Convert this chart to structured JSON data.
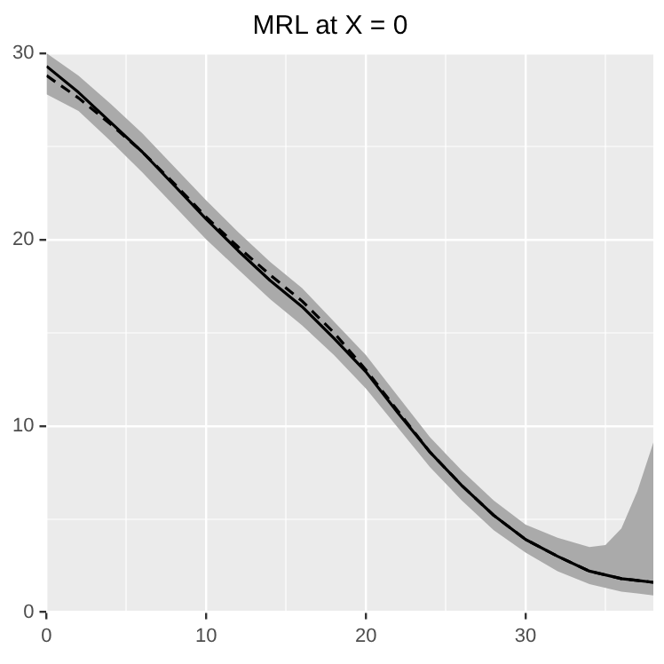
{
  "chart_data": {
    "type": "line",
    "title": "MRL at X = 0",
    "x": [
      0,
      2,
      4,
      6,
      8,
      10,
      12,
      14,
      16,
      18,
      20,
      22,
      24,
      26,
      28,
      30,
      32,
      34,
      35,
      36,
      37,
      38
    ],
    "series": [
      {
        "color": "#000000",
        "line_style": "solid",
        "values": [
          29.3,
          27.9,
          26.3,
          24.7,
          22.9,
          21.1,
          19.4,
          17.8,
          16.4,
          14.7,
          12.9,
          10.7,
          8.6,
          6.8,
          5.2,
          3.9,
          3.0,
          2.2,
          2.0,
          1.8,
          1.7,
          1.6
        ],
        "lower": [
          27.8,
          26.9,
          25.3,
          23.6,
          21.8,
          20.0,
          18.4,
          16.8,
          15.4,
          13.8,
          12.0,
          9.9,
          7.8,
          6.0,
          4.4,
          3.2,
          2.2,
          1.5,
          1.3,
          1.1,
          1.0,
          0.9
        ],
        "upper": [
          30.0,
          28.8,
          27.3,
          25.7,
          23.9,
          22.1,
          20.4,
          18.8,
          17.4,
          15.6,
          13.8,
          11.6,
          9.4,
          7.6,
          6.0,
          4.7,
          4.0,
          3.5,
          3.6,
          4.5,
          6.5,
          9.1
        ]
      },
      {
        "color": "#000000",
        "line_style": "dashed",
        "values": [
          28.8,
          27.6,
          26.2,
          24.7,
          23.0,
          21.2,
          19.6,
          18.1,
          16.7,
          15.0,
          13.0,
          10.8,
          8.6,
          6.8,
          5.2,
          3.9,
          3.0,
          2.2,
          2.0,
          1.8,
          1.7,
          1.6
        ]
      }
    ],
    "xlim": [
      0,
      38
    ],
    "xticks": [
      0,
      {
        "value": 5,
        "label": null
      },
      10,
      {
        "value": 15,
        "label": null
      },
      20,
      {
        "value": 25,
        "label": null
      },
      30,
      {
        "value": 35,
        "label": null
      }
    ],
    "ylim": [
      0,
      30
    ],
    "yticks": [
      0,
      {
        "value": 5,
        "label": null
      },
      10,
      {
        "value": 15,
        "label": null
      },
      20,
      {
        "value": 25,
        "label": null
      },
      30
    ],
    "grid": true,
    "legend": false,
    "marker": "none"
  }
}
